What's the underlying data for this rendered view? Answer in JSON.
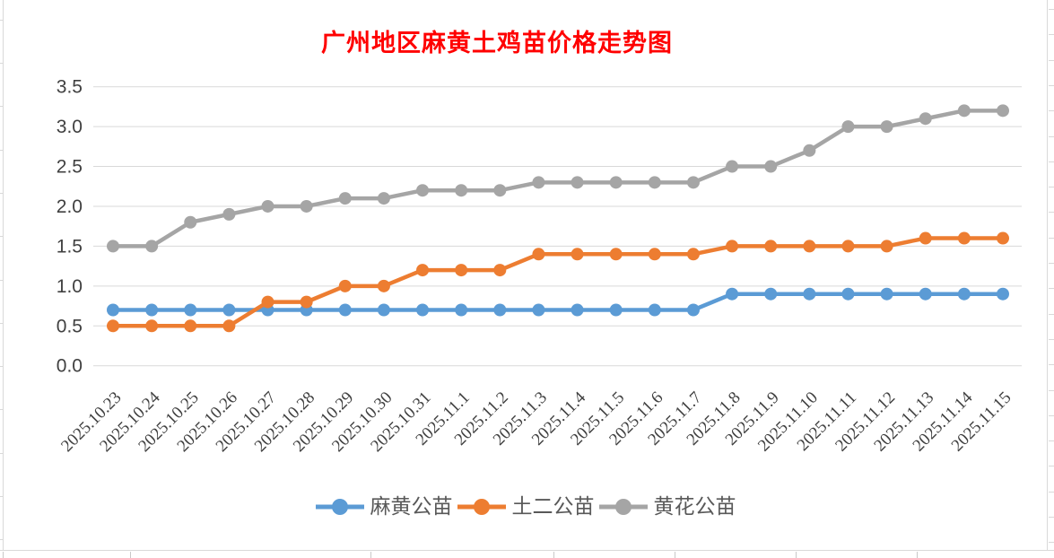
{
  "chart_data": {
    "type": "line",
    "title": "广州地区麻黄土鸡苗价格走势图",
    "title_color": "#FF0000",
    "categories": [
      "2025.10.23",
      "2025.10.24",
      "2025.10.25",
      "2025.10.26",
      "2025.10.27",
      "2025.10.28",
      "2025.10.29",
      "2025.10.30",
      "2025.10.31",
      "2025.11.1",
      "2025.11.2",
      "2025.11.3",
      "2025.11.4",
      "2025.11.5",
      "2025.11.6",
      "2025.11.7",
      "2025.11.8",
      "2025.11.9",
      "2025.11.10",
      "2025.11.11",
      "2025.11.12",
      "2025.11.13",
      "2025.11.14",
      "2025.11.15"
    ],
    "series": [
      {
        "name": "麻黄公苗",
        "color": "#5B9BD5",
        "values": [
          0.7,
          0.7,
          0.7,
          0.7,
          0.7,
          0.7,
          0.7,
          0.7,
          0.7,
          0.7,
          0.7,
          0.7,
          0.7,
          0.7,
          0.7,
          0.7,
          0.9,
          0.9,
          0.9,
          0.9,
          0.9,
          0.9,
          0.9,
          0.9
        ]
      },
      {
        "name": "土二公苗",
        "color": "#ED7D31",
        "values": [
          0.5,
          0.5,
          0.5,
          0.5,
          0.8,
          0.8,
          1.0,
          1.0,
          1.2,
          1.2,
          1.2,
          1.4,
          1.4,
          1.4,
          1.4,
          1.4,
          1.5,
          1.5,
          1.5,
          1.5,
          1.5,
          1.6,
          1.6,
          1.6
        ]
      },
      {
        "name": "黄花公苗",
        "color": "#A5A5A5",
        "values": [
          1.5,
          1.5,
          1.8,
          1.9,
          2.0,
          2.0,
          2.1,
          2.1,
          2.2,
          2.2,
          2.2,
          2.3,
          2.3,
          2.3,
          2.3,
          2.3,
          2.5,
          2.5,
          2.7,
          3.0,
          3.0,
          3.1,
          3.2,
          3.2
        ]
      }
    ],
    "ylim": [
      0.0,
      3.5
    ],
    "ytick_labels": [
      "0.0",
      "0.5",
      "1.0",
      "1.5",
      "2.0",
      "2.5",
      "3.0",
      "3.5"
    ],
    "xlabel": "",
    "ylabel": "",
    "grid": true,
    "legend_position": "bottom",
    "gridline_color": "#D9D9D9",
    "tick_label_color": "#404040",
    "legend_text_color": "#595959"
  }
}
